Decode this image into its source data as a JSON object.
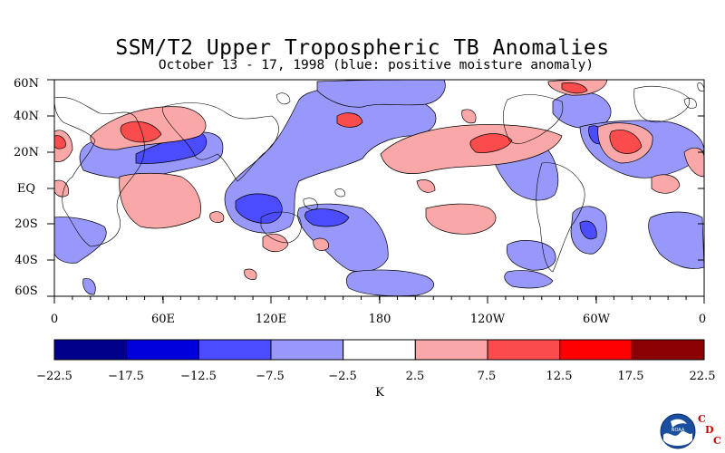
{
  "header": {
    "title": "SSM/T2 Upper Tropospheric TB Anomalies",
    "subtitle": "October 13 - 17, 1998 (blue: positive moisture anomaly)"
  },
  "map": {
    "lat_labels": [
      "60N",
      "40N",
      "20N",
      "EQ",
      "20S",
      "40S",
      "60S"
    ],
    "lon_labels": [
      "0",
      "60E",
      "120E",
      "180",
      "120W",
      "60W",
      "0"
    ]
  },
  "colorbar": {
    "tick_labels": [
      "−22.5",
      "−17.5",
      "−12.5",
      "−7.5",
      "−2.5",
      "2.5",
      "7.5",
      "12.5",
      "17.5",
      "22.5"
    ],
    "colors": [
      "#00008b",
      "#0000dc",
      "#4c4cff",
      "#9898fa",
      "#ffffff",
      "#f9a7a7",
      "#fa4c4c",
      "#ff0000",
      "#8b0000"
    ],
    "unit": "K"
  },
  "logo": {
    "name": "noaa-logo",
    "letters": [
      "C",
      "D",
      "C"
    ],
    "lettering": "NOAA"
  }
}
